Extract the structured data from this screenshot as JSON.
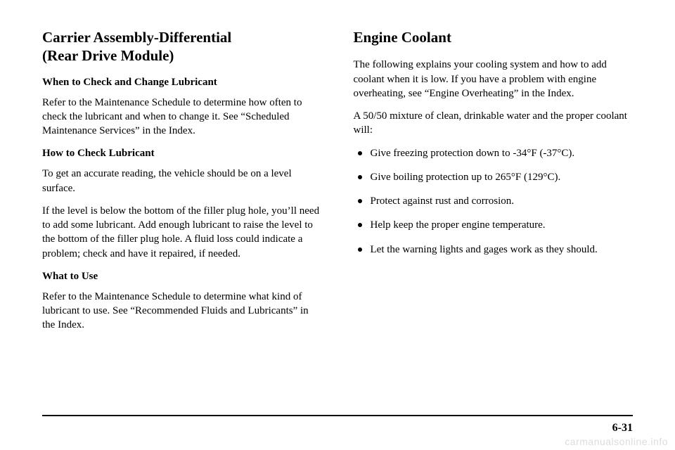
{
  "left": {
    "heading_line1": "Carrier Assembly-Differential",
    "heading_line2": "(Rear Drive Module)",
    "sub1": "When to Check and Change Lubricant",
    "p1": "Refer to the Maintenance Schedule to determine how often to check the lubricant and when to change it. See “Scheduled Maintenance Services” in the Index.",
    "sub2": "How to Check Lubricant",
    "p2": "To get an accurate reading, the vehicle should be on a level surface.",
    "p3": "If the level is below the bottom of the filler plug hole, you’ll need to add some lubricant. Add enough lubricant to raise the level to the bottom of the filler plug hole. A fluid loss could indicate a problem; check and have it repaired, if needed.",
    "sub3": "What to Use",
    "p4": "Refer to the Maintenance Schedule to determine what kind of lubricant to use. See “Recommended Fluids and Lubricants” in the Index."
  },
  "right": {
    "heading": "Engine Coolant",
    "p1": "The following explains your cooling system and how to add coolant when it is low. If you have a problem with engine overheating, see “Engine Overheating” in the Index.",
    "p2": "A 50/50 mixture of clean, drinkable water and the proper coolant will:",
    "bullets": [
      "Give freezing protection down to -34°F (-37°C).",
      "Give boiling protection up to 265°F (129°C).",
      "Protect against rust and corrosion.",
      "Help keep the proper engine temperature.",
      "Let the warning lights and gages work as they should."
    ]
  },
  "page_number": "6-31",
  "watermark": "carmanualsonline.info"
}
